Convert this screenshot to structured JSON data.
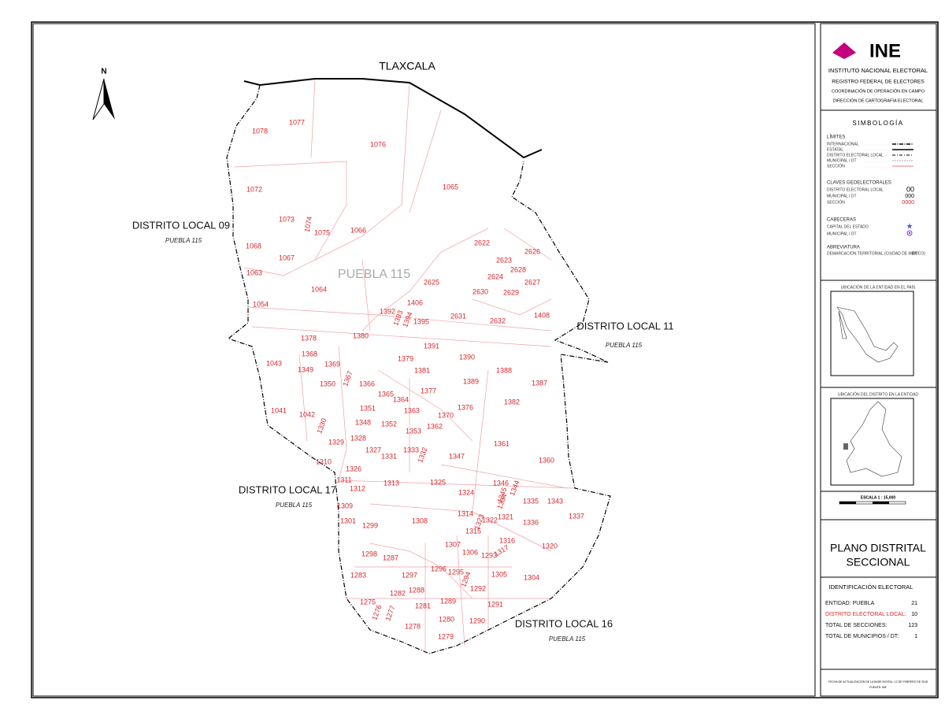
{
  "map": {
    "north": "N",
    "state_label": "TLAXCALA",
    "center_label": "PUEBLA 115",
    "districts": [
      {
        "name": "DISTRITO LOCAL 09",
        "sub": "PUEBLA 115"
      },
      {
        "name": "DISTRITO LOCAL 11",
        "sub": "PUEBLA 115"
      },
      {
        "name": "DISTRITO LOCAL 17",
        "sub": "PUEBLA 115"
      },
      {
        "name": "DISTRITO LOCAL 16",
        "sub": "PUEBLA 115"
      }
    ],
    "sections": [
      "1078",
      "1077",
      "1076",
      "1072",
      "1065",
      "1073",
      "1074",
      "1075",
      "1066",
      "1068",
      "1067",
      "1063",
      "1064",
      "1054",
      "2622",
      "2626",
      "2623",
      "2628",
      "2624",
      "2627",
      "2625",
      "2630",
      "2629",
      "1406",
      "1392",
      "1393",
      "1394",
      "1395",
      "2631",
      "2632",
      "1408",
      "1378",
      "1380",
      "1391",
      "1368",
      "1379",
      "1390",
      "1043",
      "1369",
      "1349",
      "1381",
      "1388",
      "1367",
      "1389",
      "1387",
      "1350",
      "1366",
      "1377",
      "1365",
      "1364",
      "1382",
      "1351",
      "1376",
      "1363",
      "1041",
      "1042",
      "1370",
      "1348",
      "1352",
      "1330",
      "1362",
      "1353",
      "1328",
      "1329",
      "1361",
      "1327",
      "1333",
      "1332",
      "1331",
      "1347",
      "1360",
      "1310",
      "1326",
      "1311",
      "1313",
      "1325",
      "1346",
      "1344",
      "1312",
      "1324",
      "1345",
      "1334",
      "1335",
      "1343",
      "1309",
      "1314",
      "1323",
      "1321",
      "1322",
      "1336",
      "1337",
      "1301",
      "1299",
      "1308",
      "1315",
      "1316",
      "1307",
      "1320",
      "1317",
      "1306",
      "1293",
      "1298",
      "1287",
      "1296",
      "1297",
      "1295",
      "1305",
      "1294",
      "1304",
      "1283",
      "1288",
      "1282",
      "1292",
      "1275",
      "1289",
      "1281",
      "1291",
      "1276",
      "1277",
      "1280",
      "1278",
      "1290",
      "1279"
    ]
  },
  "panel": {
    "logo": "INE",
    "institute": "INSTITUTO NACIONAL ELECTORAL",
    "registry": "REGISTRO FEDERAL DE ELECTORES",
    "coordination": "COORDINACIÓN DE OPERACIÓN EN CAMPO",
    "direction": "DIRECCIÓN DE CARTOGRAFÍA ELECTORAL",
    "symbology": "SIMBOLOGÍA",
    "limits": {
      "title": "LÍMITES",
      "items": [
        "INTERNACIONAL",
        "ESTATAL",
        "DISTRITO ELECTORAL LOCAL",
        "MUNICIPAL / DT",
        "SECCIÓN"
      ]
    },
    "keys": {
      "title": "CLAVES GEOELECTORALES",
      "items": [
        [
          "DISTRITO ELECTORAL LOCAL",
          "00"
        ],
        [
          "MUNICIPAL / DT",
          "000"
        ],
        [
          "SECCIÓN",
          "0000"
        ]
      ]
    },
    "seats": {
      "title": "CABECERAS",
      "items": [
        "CAPITAL DEL ESTADO",
        "MUNICIPAL / DT"
      ]
    },
    "abbrev": {
      "title": "ABREVIATURA",
      "items": [
        [
          "DEMARCACIÓN TERRITORIAL (CIUDAD DE MÉXICO)",
          "DT"
        ]
      ]
    },
    "country_map": "UBICACIÓN DE LA ENTIDAD EN EL PAÍS",
    "state_map": "UBICACIÓN DEL DISTRITO EN LA ENTIDAD",
    "scale": "ESCALA 1 : 15,000",
    "plan_title": [
      "PLANO DISTRITAL",
      "SECCIONAL"
    ],
    "ident": {
      "title": "IDENTIFICACIÓN ELECTORAL",
      "rows": [
        [
          "ENTIDAD:  PUEBLA",
          "21"
        ],
        [
          "DISTRITO ELECTORAL LOCAL:",
          "10"
        ],
        [
          "TOTAL DE SECCIONES:",
          "123"
        ],
        [
          "TOTAL DE MUNICIPIOS / DT:",
          "1"
        ]
      ]
    },
    "footer": [
      "FECHA DE ACTUALIZACIÓN DE LA BASE DIGITAL: 12 DE FEBRERO DE 2018",
      "FUENTE: INE"
    ]
  }
}
